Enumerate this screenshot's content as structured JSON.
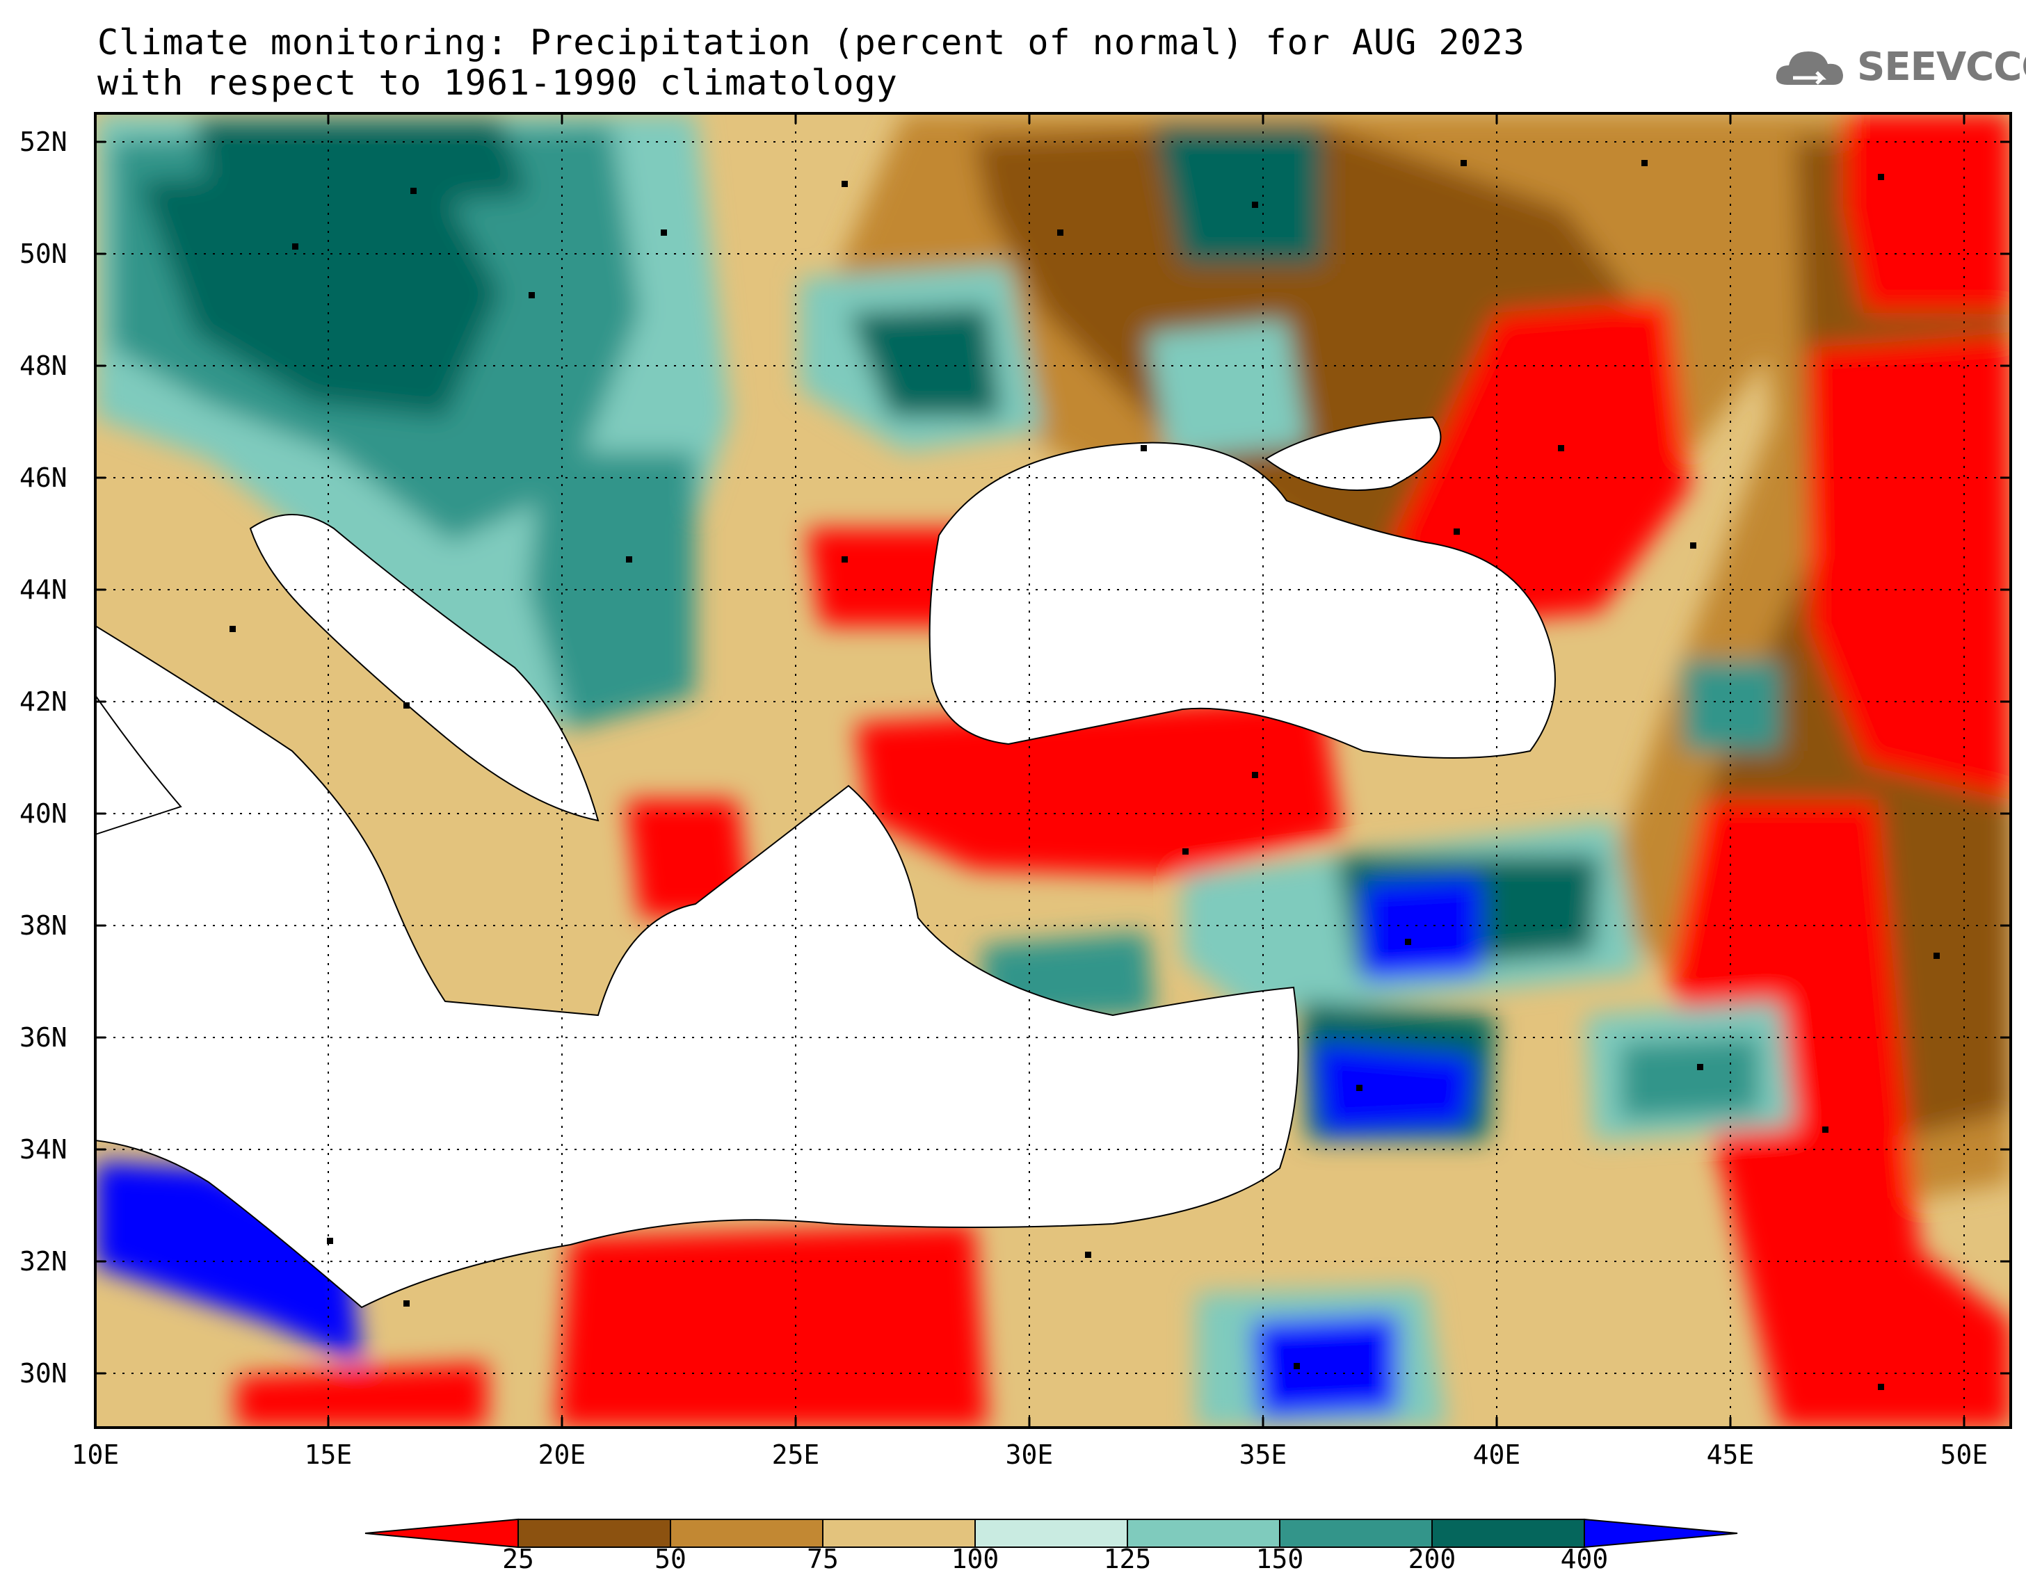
{
  "title": {
    "line1": "Climate monitoring: Precipitation (percent of normal) for AUG 2023",
    "line2": "with respect to 1961-1990 climatology"
  },
  "logo": {
    "text": "SEEVCCC",
    "icon": "cloud-icon"
  },
  "map": {
    "lon_range": [
      10,
      51
    ],
    "lat_range": [
      29,
      52.5
    ],
    "lon_ticks": [
      "10E",
      "15E",
      "20E",
      "25E",
      "30E",
      "35E",
      "40E",
      "45E",
      "50E"
    ],
    "lat_ticks": [
      "52N",
      "50N",
      "48N",
      "46N",
      "44N",
      "42N",
      "40N",
      "38N",
      "36N",
      "34N",
      "32N",
      "30N"
    ],
    "grid": "dotted"
  },
  "colorbar": {
    "labels": [
      "25",
      "50",
      "75",
      "100",
      "125",
      "150",
      "200",
      "400"
    ],
    "colors": [
      "#ff0000",
      "#8c5210",
      "#c28833",
      "#e3c37d",
      "#c9ebe1",
      "#7fcbbd",
      "#33958a",
      "#05665c",
      "#0000ff"
    ]
  }
}
